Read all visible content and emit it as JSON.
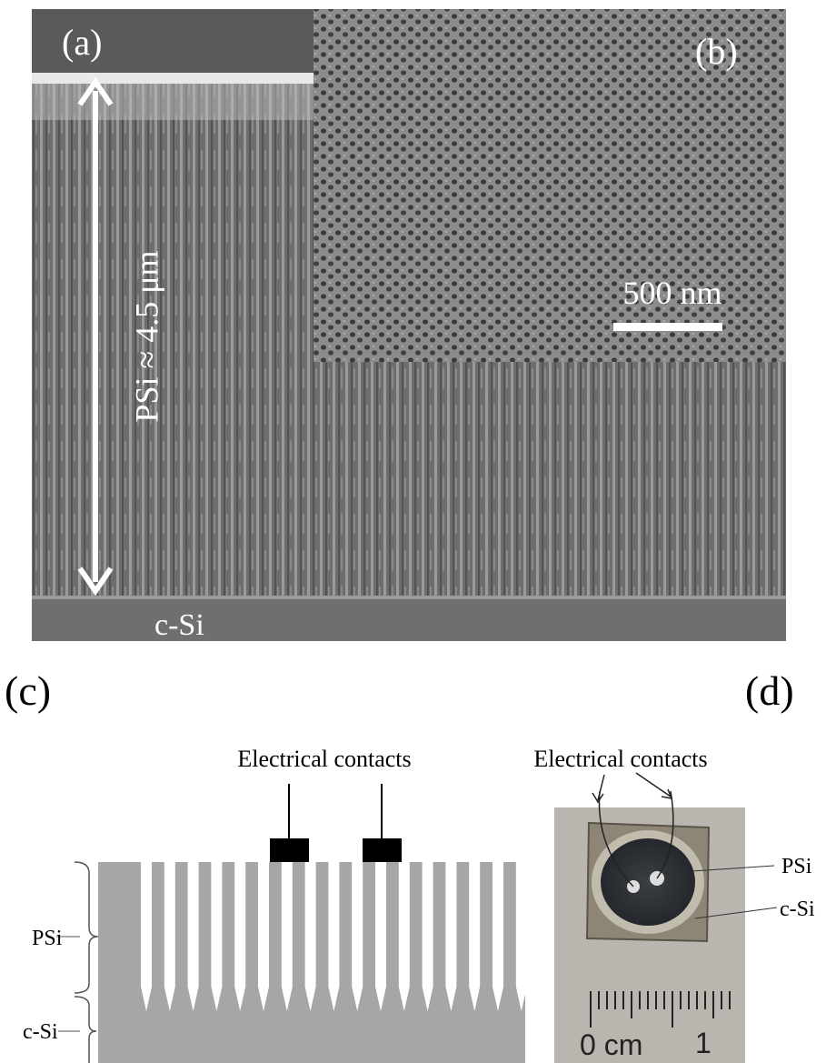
{
  "panels": {
    "a": {
      "label": "(a)",
      "thickness_label": "PSi ≈ 4.5 μm",
      "substrate_label": "c-Si"
    },
    "b": {
      "label": "(b)",
      "scale_bar": "500 nm"
    },
    "c": {
      "label": "(c)",
      "contacts_label": "Electrical contacts",
      "layer_labels": [
        "PSi",
        "c-Si"
      ]
    },
    "d": {
      "label": "(d)",
      "contacts_label": "Electrical contacts",
      "layer_labels": [
        "PSi",
        "c-Si"
      ],
      "ruler_labels": [
        "0 cm",
        "1"
      ]
    }
  }
}
